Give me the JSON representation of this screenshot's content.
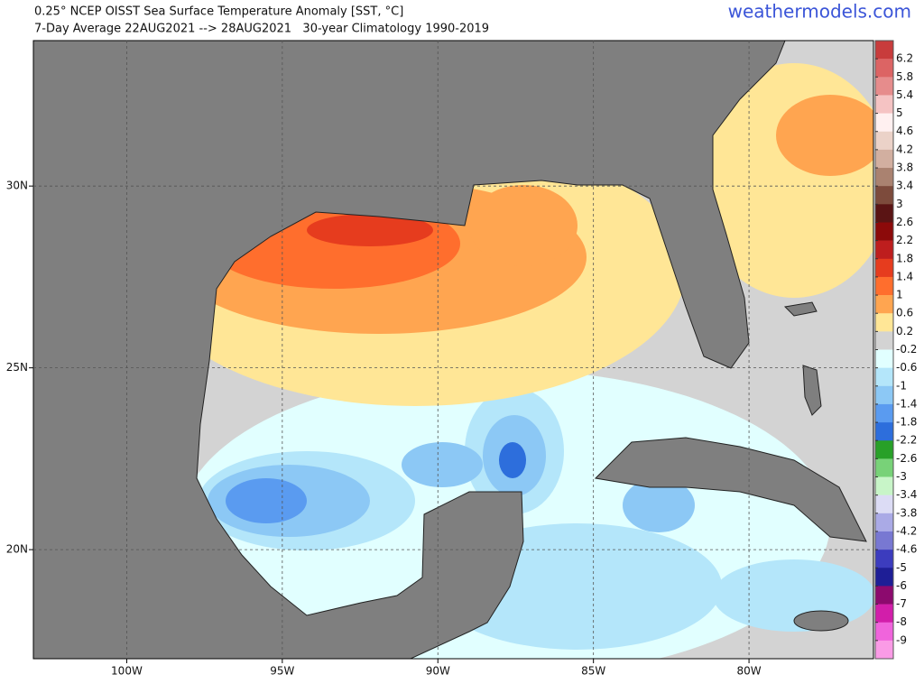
{
  "header": {
    "title": "0.25° NCEP OISST Sea Surface Temperature Anomaly [SST, °C]",
    "subtitle": "7-Day Average 22AUG2021 --> 28AUG2021   30-year Climatology 1990-2019",
    "source": "weathermodels.com"
  },
  "map": {
    "xlim": [
      -103,
      -76
    ],
    "ylim": [
      17,
      34
    ],
    "xticks": [
      {
        "value": -100,
        "label": "100W"
      },
      {
        "value": -95,
        "label": "95W"
      },
      {
        "value": -90,
        "label": "90W"
      },
      {
        "value": -85,
        "label": "85W"
      },
      {
        "value": -80,
        "label": "80W"
      }
    ],
    "yticks": [
      {
        "value": 20,
        "label": "20N"
      },
      {
        "value": 25,
        "label": "25N"
      },
      {
        "value": 30,
        "label": "30N"
      }
    ],
    "grid": true
  },
  "colorbar": {
    "ticks": [
      6.2,
      5.8,
      5.4,
      5,
      4.6,
      4.2,
      3.8,
      3.4,
      3,
      2.6,
      2.2,
      1.8,
      1.4,
      1,
      0.6,
      0.2,
      -0.2,
      -0.6,
      -1,
      -1.4,
      -1.8,
      -2.2,
      -2.6,
      -3,
      -3.4,
      -3.8,
      -4.2,
      -4.6,
      -5,
      -6,
      -7,
      -8,
      -9
    ],
    "colors": [
      "#c83c3c",
      "#dc6464",
      "#e68c8c",
      "#f5c3c3",
      "#fff0f0",
      "#ebd2c8",
      "#d2afa0",
      "#aa8270",
      "#7d4b3c",
      "#5a1414",
      "#8c0a0a",
      "#be1e1e",
      "#e63c1e",
      "#ff6e2d",
      "#ffa550",
      "#ffe696",
      "#d3d3d3",
      "#e1ffff",
      "#b4e6fa",
      "#8cc8f5",
      "#5a9bf0",
      "#2d6edc",
      "#28a028",
      "#78d278",
      "#c8f5c8",
      "#dcdcf5",
      "#aaaae6",
      "#7878d2",
      "#3c3cbe",
      "#1e1e96",
      "#8c0a6e",
      "#d21eaa",
      "#f064dc",
      "#fa9be6"
    ]
  }
}
